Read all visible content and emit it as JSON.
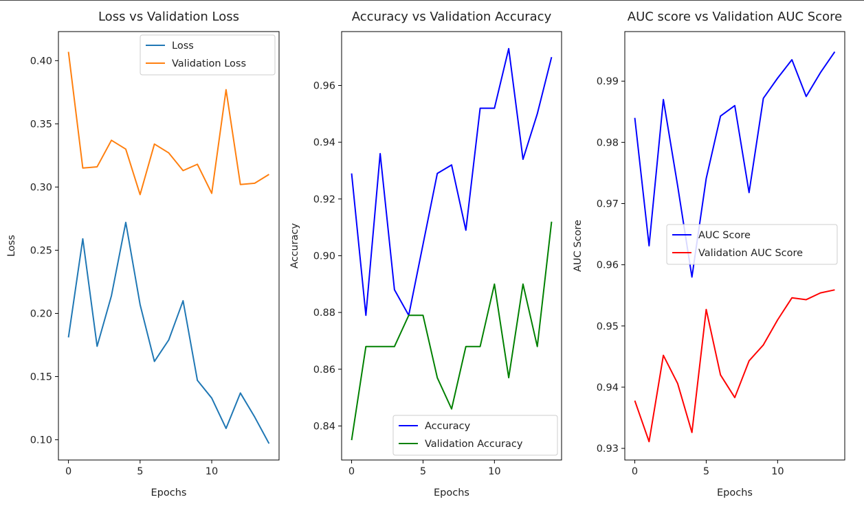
{
  "figure": {
    "charts": [
      {
        "id": "loss",
        "title": "Loss vs Validation Loss",
        "xlabel": "Epochs",
        "ylabel": "Loss",
        "xlim": [
          -0.7,
          14.7
        ],
        "ylim": [
          0.084,
          0.423
        ],
        "xticks": [
          0,
          5,
          10
        ],
        "xtick_labels": [
          "0",
          "5",
          "10"
        ],
        "yticks": [
          0.1,
          0.15,
          0.2,
          0.25,
          0.3,
          0.35,
          0.4
        ],
        "ytick_labels": [
          "0.10",
          "0.15",
          "0.20",
          "0.25",
          "0.30",
          "0.35",
          "0.40"
        ],
        "legend": {
          "position": "upper right",
          "labels": [
            "Loss",
            "Validation Loss"
          ]
        }
      },
      {
        "id": "accuracy",
        "title": "Accuracy vs Validation Accuracy",
        "xlabel": "Epochs",
        "ylabel": "Accuracy",
        "xlim": [
          -0.7,
          14.7
        ],
        "ylim": [
          0.828,
          0.979
        ],
        "xticks": [
          0,
          5,
          10
        ],
        "xtick_labels": [
          "0",
          "5",
          "10"
        ],
        "yticks": [
          0.84,
          0.86,
          0.88,
          0.9,
          0.92,
          0.94,
          0.96
        ],
        "ytick_labels": [
          "0.84",
          "0.86",
          "0.88",
          "0.90",
          "0.92",
          "0.94",
          "0.96"
        ],
        "legend": {
          "position": "lower right",
          "labels": [
            "Accuracy",
            "Validation Accuracy"
          ]
        }
      },
      {
        "id": "auc",
        "title": "AUC score vs Validation AUC Score",
        "xlabel": "Epochs",
        "ylabel": "AUC Score",
        "xlim": [
          -0.7,
          14.7
        ],
        "ylim": [
          0.9281,
          0.9981
        ],
        "xticks": [
          0,
          5,
          10
        ],
        "xtick_labels": [
          "0",
          "5",
          "10"
        ],
        "yticks": [
          0.93,
          0.94,
          0.95,
          0.96,
          0.97,
          0.98,
          0.99
        ],
        "ytick_labels": [
          "0.93",
          "0.94",
          "0.95",
          "0.96",
          "0.97",
          "0.98",
          "0.99"
        ],
        "legend": {
          "position": "center right",
          "labels": [
            "AUC Score",
            "Validation AUC Score"
          ]
        }
      }
    ]
  },
  "chart_data": [
    {
      "type": "line",
      "title": "Loss vs Validation Loss",
      "xlabel": "Epochs",
      "ylabel": "Loss",
      "x": [
        0,
        1,
        2,
        3,
        4,
        5,
        6,
        7,
        8,
        9,
        10,
        11,
        12,
        13,
        14
      ],
      "ylim": [
        0.084,
        0.423
      ],
      "grid": false,
      "legend_position": "upper right",
      "series": [
        {
          "name": "Loss",
          "color": "#1f77b4",
          "values": [
            0.181,
            0.259,
            0.174,
            0.214,
            0.272,
            0.207,
            0.162,
            0.179,
            0.21,
            0.147,
            0.133,
            0.109,
            0.137,
            0.118,
            0.097
          ]
        },
        {
          "name": "Validation Loss",
          "color": "#ff7f0e",
          "values": [
            0.407,
            0.315,
            0.316,
            0.337,
            0.33,
            0.294,
            0.334,
            0.327,
            0.313,
            0.318,
            0.295,
            0.377,
            0.302,
            0.303,
            0.31
          ]
        }
      ]
    },
    {
      "type": "line",
      "title": "Accuracy vs Validation Accuracy",
      "xlabel": "Epochs",
      "ylabel": "Accuracy",
      "x": [
        0,
        1,
        2,
        3,
        4,
        5,
        6,
        7,
        8,
        9,
        10,
        11,
        12,
        13,
        14
      ],
      "ylim": [
        0.828,
        0.979
      ],
      "grid": false,
      "legend_position": "lower right",
      "series": [
        {
          "name": "Accuracy",
          "color": "#0000ff",
          "values": [
            0.929,
            0.879,
            0.936,
            0.888,
            0.879,
            0.904,
            0.929,
            0.932,
            0.909,
            0.952,
            0.952,
            0.973,
            0.934,
            0.95,
            0.97
          ]
        },
        {
          "name": "Validation Accuracy",
          "color": "#008000",
          "values": [
            0.835,
            0.868,
            0.868,
            0.868,
            0.879,
            0.879,
            0.857,
            0.846,
            0.868,
            0.868,
            0.89,
            0.857,
            0.89,
            0.868,
            0.912
          ]
        }
      ]
    },
    {
      "type": "line",
      "title": "AUC score vs Validation AUC Score",
      "xlabel": "Epochs",
      "ylabel": "AUC Score",
      "x": [
        0,
        1,
        2,
        3,
        4,
        5,
        6,
        7,
        8,
        9,
        10,
        11,
        12,
        13,
        14
      ],
      "ylim": [
        0.9281,
        0.9981
      ],
      "grid": false,
      "legend_position": "center right",
      "series": [
        {
          "name": "AUC Score",
          "color": "#0000ff",
          "values": [
            0.984,
            0.9631,
            0.987,
            0.9729,
            0.958,
            0.9741,
            0.9843,
            0.986,
            0.9718,
            0.9872,
            0.9905,
            0.9935,
            0.9875,
            0.9914,
            0.9948
          ]
        },
        {
          "name": "Validation AUC Score",
          "color": "#ff0000",
          "values": [
            0.9378,
            0.9311,
            0.9452,
            0.9406,
            0.9326,
            0.9527,
            0.942,
            0.9383,
            0.9443,
            0.9469,
            0.951,
            0.9546,
            0.9543,
            0.9554,
            0.9559
          ]
        }
      ]
    }
  ]
}
